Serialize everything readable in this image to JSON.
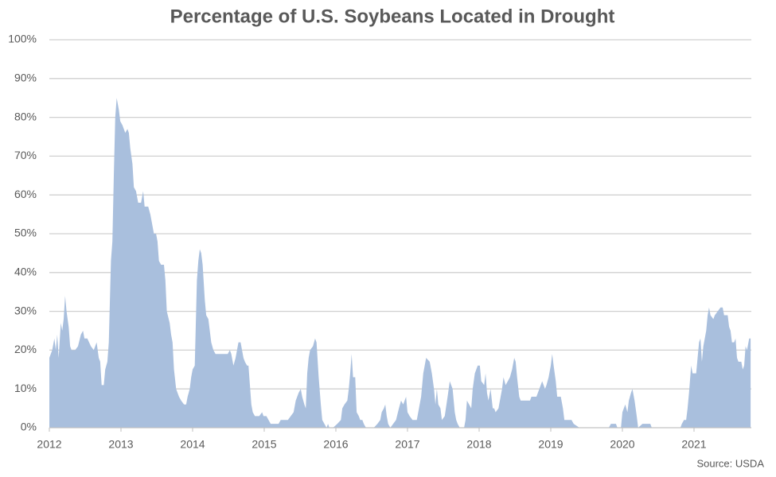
{
  "chart_data": {
    "type": "area",
    "title": "Percentage of U.S. Soybeans Located in Drought",
    "annotation": "Source: USDA",
    "color": "#a9bfdd",
    "grid": true,
    "xlim": [
      2012,
      2021.8
    ],
    "xticks": [
      2012,
      2013,
      2014,
      2015,
      2016,
      2017,
      2018,
      2019,
      2020,
      2021
    ],
    "ylim": [
      0,
      100
    ],
    "yticks": [
      {
        "value": 0,
        "label": "0%"
      },
      {
        "value": 10,
        "label": "10%"
      },
      {
        "value": 20,
        "label": "20%"
      },
      {
        "value": 30,
        "label": "30%"
      },
      {
        "value": 40,
        "label": "40%"
      },
      {
        "value": 50,
        "label": "50%"
      },
      {
        "value": 60,
        "label": "60%"
      },
      {
        "value": 70,
        "label": "70%"
      },
      {
        "value": 80,
        "label": "80%"
      },
      {
        "value": 90,
        "label": "90%"
      },
      {
        "value": 100,
        "label": "100%"
      }
    ],
    "x": [
      2012.0,
      2012.04,
      2012.07,
      2012.09,
      2012.11,
      2012.13,
      2012.16,
      2012.18,
      2012.2,
      2012.22,
      2012.24,
      2012.27,
      2012.29,
      2012.31,
      2012.36,
      2012.4,
      2012.44,
      2012.47,
      2012.49,
      2012.53,
      2012.58,
      2012.62,
      2012.66,
      2012.69,
      2012.71,
      2012.73,
      2012.76,
      2012.78,
      2012.81,
      2012.83,
      2012.86,
      2012.88,
      2012.9,
      2012.92,
      2012.94,
      2012.97,
      2012.99,
      2013.02,
      2013.06,
      2013.09,
      2013.11,
      2013.13,
      2013.16,
      2013.18,
      2013.21,
      2013.24,
      2013.28,
      2013.31,
      2013.33,
      2013.38,
      2013.41,
      2013.43,
      2013.46,
      2013.49,
      2013.51,
      2013.53,
      2013.56,
      2013.6,
      2013.62,
      2013.64,
      2013.68,
      2013.7,
      2013.72,
      2013.74,
      2013.77,
      2013.79,
      2013.81,
      2013.84,
      2013.88,
      2013.91,
      2013.93,
      2013.96,
      2013.98,
      2014.0,
      2014.03,
      2014.06,
      2014.08,
      2014.1,
      2014.12,
      2014.14,
      2014.17,
      2014.19,
      2014.22,
      2014.26,
      2014.29,
      2014.32,
      2014.42,
      2014.49,
      2014.52,
      2014.54,
      2014.57,
      2014.6,
      2014.62,
      2014.64,
      2014.67,
      2014.69,
      2014.71,
      2014.73,
      2014.76,
      2014.78,
      2014.8,
      2014.82,
      2014.84,
      2014.87,
      2014.93,
      2014.97,
      2014.99,
      2015.03,
      2015.09,
      2015.2,
      2015.23,
      2015.33,
      2015.37,
      2015.41,
      2015.44,
      2015.48,
      2015.51,
      2015.53,
      2015.56,
      2015.58,
      2015.6,
      2015.62,
      2015.64,
      2015.68,
      2015.71,
      2015.73,
      2015.76,
      2015.79,
      2015.81,
      2015.84,
      2015.87,
      2015.89,
      2015.91,
      2015.96,
      2016.02,
      2016.07,
      2016.09,
      2016.12,
      2016.16,
      2016.18,
      2016.2,
      2016.22,
      2016.24,
      2016.27,
      2016.29,
      2016.32,
      2016.34,
      2016.37,
      2016.39,
      2016.42,
      2016.53,
      2016.58,
      2016.62,
      2016.64,
      2016.67,
      2016.69,
      2016.71,
      2016.73,
      2016.76,
      2016.8,
      2016.84,
      2016.88,
      2016.91,
      2016.94,
      2016.98,
      2017.0,
      2017.03,
      2017.07,
      2017.13,
      2017.16,
      2017.19,
      2017.22,
      2017.26,
      2017.31,
      2017.34,
      2017.37,
      2017.39,
      2017.41,
      2017.43,
      2017.46,
      2017.48,
      2017.52,
      2017.56,
      2017.59,
      2017.61,
      2017.63,
      2017.66,
      2017.68,
      2017.7,
      2017.73,
      2017.79,
      2017.81,
      2017.83,
      2017.86,
      2017.89,
      2017.91,
      2017.94,
      2017.98,
      2018.01,
      2018.03,
      2018.07,
      2018.09,
      2018.11,
      2018.13,
      2018.16,
      2018.19,
      2018.21,
      2018.23,
      2018.27,
      2018.3,
      2018.32,
      2018.34,
      2018.37,
      2018.4,
      2018.43,
      2018.46,
      2018.49,
      2018.51,
      2018.53,
      2018.56,
      2018.58,
      2018.61,
      2018.71,
      2018.73,
      2018.8,
      2018.82,
      2018.86,
      2018.88,
      2018.9,
      2018.92,
      2018.94,
      2018.97,
      2019.0,
      2019.02,
      2019.04,
      2019.07,
      2019.09,
      2019.14,
      2019.17,
      2019.19,
      2019.29,
      2019.32,
      2019.4,
      2019.81,
      2019.84,
      2019.91,
      2019.93,
      2019.98,
      2020.0,
      2020.04,
      2020.07,
      2020.09,
      2020.12,
      2020.14,
      2020.17,
      2020.2,
      2020.22,
      2020.28,
      2020.39,
      2020.41,
      2020.81,
      2020.83,
      2020.86,
      2020.89,
      2020.91,
      2020.93,
      2020.96,
      2020.98,
      2021.03,
      2021.07,
      2021.09,
      2021.11,
      2021.13,
      2021.17,
      2021.19,
      2021.21,
      2021.23,
      2021.27,
      2021.29,
      2021.33,
      2021.37,
      2021.4,
      2021.42,
      2021.47,
      2021.49,
      2021.51,
      2021.53,
      2021.56,
      2021.58,
      2021.6,
      2021.62,
      2021.66,
      2021.68,
      2021.7,
      2021.72,
      2021.74,
      2021.77,
      2021.79
    ],
    "values": [
      18,
      20,
      23,
      20,
      24,
      18,
      27,
      25,
      28,
      34,
      30,
      26,
      21,
      20,
      20,
      21,
      24,
      25,
      23,
      23,
      21,
      20,
      22,
      18,
      17,
      11,
      11,
      15,
      17,
      22,
      43,
      48,
      65,
      80,
      85,
      82,
      79,
      78,
      76,
      77,
      76,
      72,
      68,
      62,
      61,
      58,
      58,
      61,
      57,
      57,
      55,
      53,
      50,
      50,
      48,
      43,
      42,
      42,
      38,
      30,
      27,
      24,
      22,
      15,
      10,
      9,
      8,
      7,
      6,
      6,
      8,
      10,
      13,
      15,
      16,
      38,
      43,
      46,
      45,
      42,
      33,
      29,
      28,
      22,
      20,
      19,
      19,
      19,
      20,
      19,
      16,
      18,
      20,
      22,
      22,
      20,
      18,
      17,
      16,
      16,
      11,
      6,
      4,
      3,
      3,
      4,
      3,
      3,
      1,
      1,
      2,
      2,
      3,
      4,
      7,
      9,
      10,
      8,
      6,
      5,
      14,
      18,
      20,
      21,
      23,
      22,
      13,
      6,
      2,
      1,
      0,
      1,
      0,
      0,
      1,
      2,
      5,
      6,
      7,
      10,
      14,
      19,
      13,
      13,
      4,
      3,
      2,
      2,
      1,
      0,
      0,
      1,
      2,
      4,
      5,
      6,
      3,
      1,
      0,
      1,
      2,
      5,
      7,
      6,
      8,
      4,
      3,
      2,
      2,
      5,
      8,
      14,
      18,
      17,
      14,
      10,
      6,
      10,
      6,
      5,
      2,
      3,
      8,
      12,
      11,
      10,
      4,
      2,
      1,
      0,
      0,
      2,
      7,
      6,
      5,
      10,
      14,
      16,
      16,
      12,
      11,
      14,
      9,
      7,
      10,
      5,
      5,
      4,
      5,
      8,
      10,
      13,
      11,
      12,
      13,
      15,
      18,
      17,
      13,
      8,
      7,
      7,
      7,
      8,
      8,
      9,
      11,
      12,
      11,
      10,
      11,
      13,
      16,
      19,
      16,
      12,
      8,
      8,
      5,
      2,
      2,
      1,
      0,
      0,
      1,
      1,
      0,
      0,
      4,
      6,
      4,
      7,
      9,
      10,
      7,
      3,
      0,
      1,
      1,
      0,
      0,
      1,
      2,
      2,
      5,
      9,
      16,
      14,
      14,
      22,
      23,
      17,
      21,
      25,
      29,
      31,
      29,
      28,
      29,
      30,
      31,
      31,
      29,
      29,
      26,
      25,
      22,
      22,
      23,
      18,
      17,
      17,
      15,
      16,
      21,
      20,
      23,
      23
    ]
  }
}
